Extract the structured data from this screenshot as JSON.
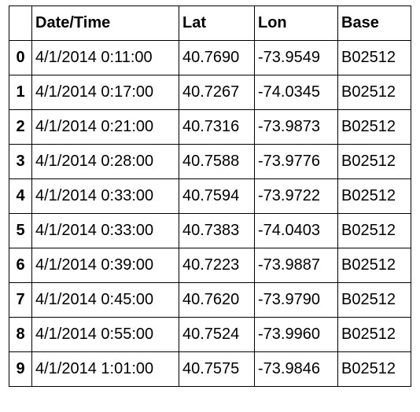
{
  "table": {
    "index_header": "",
    "columns": [
      "Date/Time",
      "Lat",
      "Lon",
      "Base"
    ],
    "rows": [
      {
        "index": "0",
        "cells": [
          "4/1/2014 0:11:00",
          "40.7690",
          "-73.9549",
          "B02512"
        ]
      },
      {
        "index": "1",
        "cells": [
          "4/1/2014 0:17:00",
          "40.7267",
          "-74.0345",
          "B02512"
        ]
      },
      {
        "index": "2",
        "cells": [
          "4/1/2014 0:21:00",
          "40.7316",
          "-73.9873",
          "B02512"
        ]
      },
      {
        "index": "3",
        "cells": [
          "4/1/2014 0:28:00",
          "40.7588",
          "-73.9776",
          "B02512"
        ]
      },
      {
        "index": "4",
        "cells": [
          "4/1/2014 0:33:00",
          "40.7594",
          "-73.9722",
          "B02512"
        ]
      },
      {
        "index": "5",
        "cells": [
          "4/1/2014 0:33:00",
          "40.7383",
          "-74.0403",
          "B02512"
        ]
      },
      {
        "index": "6",
        "cells": [
          "4/1/2014 0:39:00",
          "40.7223",
          "-73.9887",
          "B02512"
        ]
      },
      {
        "index": "7",
        "cells": [
          "4/1/2014 0:45:00",
          "40.7620",
          "-73.9790",
          "B02512"
        ]
      },
      {
        "index": "8",
        "cells": [
          "4/1/2014 0:55:00",
          "40.7524",
          "-73.9960",
          "B02512"
        ]
      },
      {
        "index": "9",
        "cells": [
          "4/1/2014 1:01:00",
          "40.7575",
          "-73.9846",
          "B02512"
        ]
      }
    ]
  }
}
